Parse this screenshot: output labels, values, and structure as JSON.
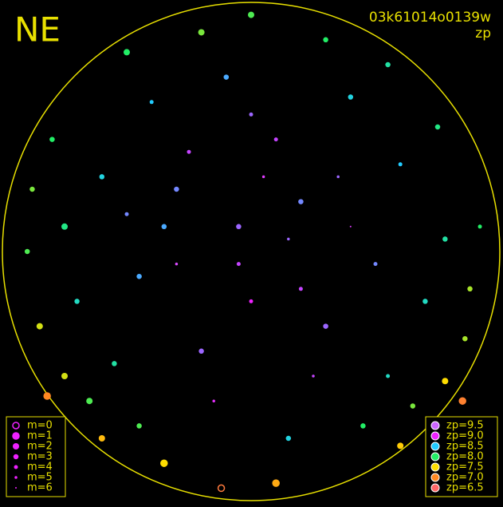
{
  "chart_data": {
    "type": "sky",
    "label": "NE",
    "image_id": "03k61014o0139w",
    "mode": "zp",
    "magnitude_legend": [
      {
        "value": 0,
        "label": "m=0"
      },
      {
        "value": 1,
        "label": "m=1"
      },
      {
        "value": 2,
        "label": "m=2"
      },
      {
        "value": 3,
        "label": "m=3"
      },
      {
        "value": 4,
        "label": "m=4"
      },
      {
        "value": 5,
        "label": "m=5"
      },
      {
        "value": 6,
        "label": "m=6"
      }
    ],
    "zp_legend": [
      {
        "value": 9.5,
        "label": "zp=9.5",
        "color": "#cc66ff"
      },
      {
        "value": 9.0,
        "label": "zp=9.0",
        "color": "#ee22ff"
      },
      {
        "value": 8.5,
        "label": "zp=8.5",
        "color": "#22ccff"
      },
      {
        "value": 8.0,
        "label": "zp=8.0",
        "color": "#22ee66"
      },
      {
        "value": 7.5,
        "label": "zp=7.5",
        "color": "#ffdd00"
      },
      {
        "value": 7.0,
        "label": "zp=7.0",
        "color": "#ff8822"
      },
      {
        "value": 6.5,
        "label": "zp=6.5",
        "color": "#ff6666"
      }
    ],
    "stars": {
      "x": [
        -0.05,
        0.2,
        -0.3,
        0.35,
        0.1,
        -0.45,
        0.5,
        -0.2,
        0.25,
        0.0,
        -0.6,
        0.6,
        -0.55,
        0.55,
        -0.1,
        0.15,
        -0.75,
        0.78,
        -0.4,
        0.4,
        -0.65,
        0.65,
        -0.85,
        0.86,
        -0.2,
        0.3,
        -0.35,
        0.1,
        -0.8,
        0.75,
        -0.9,
        0.92,
        -0.6,
        0.6,
        0.05,
        -0.3,
        0.4,
        -0.15,
        0.3,
        -0.5,
        0.0,
        -0.7,
        0.7,
        -0.25,
        0.2,
        -0.05,
        0.45,
        -0.45,
        -0.88,
        0.88,
        -0.5,
        0.55,
        -0.75,
        0.78,
        0.0,
        -0.12,
        0.85,
        -0.82,
        0.15,
        -0.35
      ],
      "y": [
        0.1,
        -0.15,
        0.25,
        0.3,
        0.45,
        -0.1,
        -0.05,
        -0.4,
        -0.5,
        -0.2,
        0.3,
        0.35,
        -0.45,
        -0.5,
        0.7,
        -0.75,
        0.1,
        0.05,
        0.6,
        0.62,
        -0.6,
        -0.62,
        -0.3,
        -0.35,
        0.88,
        0.85,
        -0.85,
        -0.93,
        0.45,
        0.5,
        0.0,
        0.1,
        -0.75,
        -0.78,
        0.3,
        -0.05,
        0.1,
        -0.6,
        -0.3,
        0.15,
        0.55,
        -0.2,
        -0.2,
        0.4,
        0.2,
        -0.05,
        -0.7,
        -0.7,
        0.25,
        -0.15,
        0.8,
        0.75,
        -0.5,
        -0.52,
        0.95,
        -0.95,
        -0.6,
        -0.58,
        0.05,
        0.1
      ],
      "zp": [
        8.8,
        8.9,
        8.7,
        8.8,
        8.9,
        8.6,
        8.7,
        8.8,
        8.9,
        9.0,
        8.4,
        8.5,
        8.2,
        8.3,
        8.6,
        8.4,
        8.1,
        8.2,
        8.5,
        8.4,
        7.9,
        7.8,
        7.6,
        7.7,
        7.8,
        8.0,
        7.5,
        7.2,
        8.0,
        8.1,
        7.9,
        8.0,
        7.3,
        7.4,
        9.2,
        9.3,
        9.2,
        9.1,
        8.8,
        8.7,
        8.8,
        8.3,
        8.3,
        8.9,
        8.7,
        8.9,
        8.0,
        7.9,
        7.8,
        7.7,
        8.0,
        8.2,
        7.6,
        7.5,
        7.9,
        6.8,
        6.9,
        7.0,
        8.8,
        8.6
      ],
      "m": [
        3,
        4,
        3,
        5,
        4,
        3,
        4,
        3,
        5,
        4,
        3,
        4,
        3,
        4,
        3,
        3,
        2,
        3,
        4,
        3,
        2,
        3,
        2,
        3,
        2,
        3,
        1,
        1,
        3,
        3,
        3,
        4,
        2,
        2,
        5,
        5,
        6,
        5,
        3,
        4,
        4,
        3,
        3,
        4,
        3,
        4,
        3,
        3,
        3,
        3,
        2,
        3,
        2,
        2,
        2,
        0,
        1,
        1,
        5,
        3
      ]
    }
  }
}
